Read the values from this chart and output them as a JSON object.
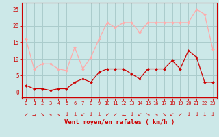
{
  "hours": [
    0,
    1,
    2,
    3,
    4,
    5,
    6,
    7,
    8,
    9,
    10,
    11,
    12,
    13,
    14,
    15,
    16,
    17,
    18,
    19,
    20,
    21,
    22,
    23
  ],
  "wind_avg": [
    2,
    1,
    1,
    0.5,
    1,
    1,
    3,
    4,
    3,
    6,
    7,
    7,
    7,
    5.5,
    4,
    7,
    7,
    7,
    9.5,
    7,
    12.5,
    10.5,
    3,
    3
  ],
  "wind_gust": [
    16,
    7,
    8.5,
    8.5,
    7,
    6.5,
    13.5,
    7,
    10.5,
    16,
    21,
    19.5,
    21,
    21,
    18,
    21,
    21,
    21,
    21,
    21,
    21,
    25,
    23.5,
    13
  ],
  "color_avg": "#cc0000",
  "color_gust": "#ffaaaa",
  "bg_color": "#cce8e8",
  "grid_color": "#aacccc",
  "xlabel": "Vent moyen/en rafales ( km/h )",
  "ylim": [
    -2,
    27
  ],
  "yticks": [
    0,
    5,
    10,
    15,
    20,
    25
  ],
  "tick_color": "#cc0000",
  "xlabel_color": "#cc0000"
}
